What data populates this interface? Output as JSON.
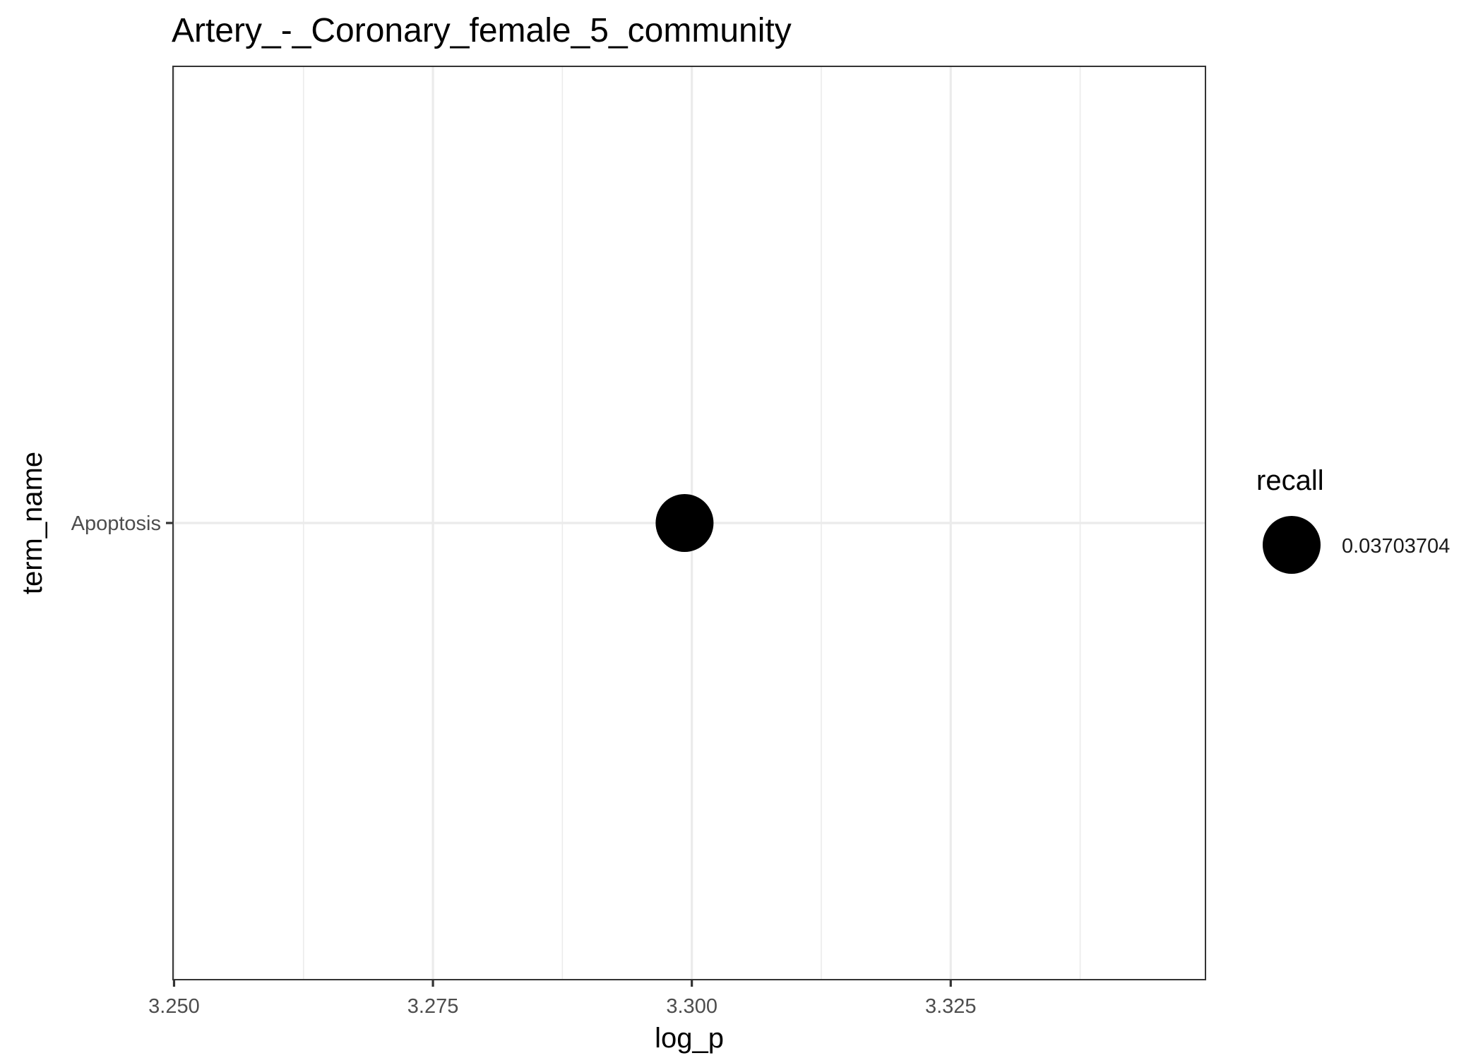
{
  "chart_data": {
    "type": "scatter",
    "title": "Artery_-_Coronary_female_5_community",
    "xlabel": "log_p",
    "ylabel": "term_name",
    "categories": [
      "Apoptosis"
    ],
    "x_ticks": [
      "3.250",
      "3.275",
      "3.300",
      "3.325"
    ],
    "xlim": [
      3.2499,
      3.3496
    ],
    "grid": true,
    "points": [
      {
        "term_name": "Apoptosis",
        "log_p": 3.2993,
        "recall": 0.03703704
      }
    ],
    "legend": {
      "title": "recall",
      "placement": "right",
      "entries": [
        "0.03703704"
      ]
    },
    "colors": {
      "point": "#000000",
      "grid": "#ebebeb",
      "panel_border": "#333333",
      "tick_label": "#4d4d4d"
    }
  }
}
